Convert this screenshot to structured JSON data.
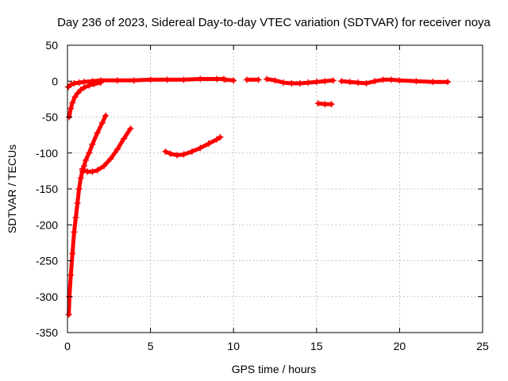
{
  "chart_data": {
    "type": "scatter",
    "title": "Day 236 of 2023, Sidereal Day-to-day VTEC variation (SDTVAR) for receiver noya",
    "xlabel": "GPS time / hours",
    "ylabel": "SDTVAR / TECUs",
    "xlim": [
      0,
      25
    ],
    "ylim": [
      -350,
      50
    ],
    "xticks": [
      0,
      5,
      10,
      15,
      20,
      25
    ],
    "yticks": [
      -350,
      -300,
      -250,
      -200,
      -150,
      -100,
      -50,
      0,
      50
    ],
    "grid": true,
    "marker": "plus",
    "color": "#ff0000",
    "series": [
      {
        "name": "track-main",
        "x": [
          0.05,
          0.2,
          0.4,
          0.7,
          1.0,
          1.5,
          2.0,
          3.0,
          4.0,
          5.0,
          6.0,
          7.0,
          8.0,
          9.0,
          9.4
        ],
        "y": [
          -8,
          -5,
          -3,
          -2,
          -1,
          0,
          1,
          1,
          1,
          2,
          2,
          2,
          3,
          3,
          3
        ]
      },
      {
        "name": "track-main-2",
        "x": [
          9.5,
          10.0
        ],
        "y": [
          2,
          1
        ]
      },
      {
        "name": "track-main-3",
        "x": [
          10.8,
          11.5
        ],
        "y": [
          2,
          2
        ]
      },
      {
        "name": "track-main-4",
        "x": [
          12.0,
          12.5,
          13.0,
          13.5,
          14.0,
          14.5,
          15.0,
          15.5,
          16.0
        ],
        "y": [
          3,
          1,
          -2,
          -3,
          -3,
          -2,
          -1,
          0,
          1
        ]
      },
      {
        "name": "track-main-5",
        "x": [
          16.5,
          17.0,
          17.5,
          18.0,
          18.5,
          19.0,
          19.5,
          20.0,
          21.0,
          22.0,
          22.9
        ],
        "y": [
          0,
          -1,
          -2,
          -3,
          0,
          2,
          2,
          1,
          0,
          -1,
          -1
        ]
      },
      {
        "name": "track-main-6",
        "x": [
          15.1,
          15.5,
          15.9
        ],
        "y": [
          -31,
          -32,
          -32
        ]
      },
      {
        "name": "track-rise-a",
        "x": [
          0.1,
          0.2,
          0.3,
          0.45,
          0.6,
          0.8,
          1.0,
          1.3,
          1.6,
          2.0
        ],
        "y": [
          -50,
          -38,
          -30,
          -22,
          -17,
          -12,
          -9,
          -6,
          -4,
          -2
        ]
      },
      {
        "name": "track-rise-b",
        "x": [
          0.08,
          0.12,
          0.2,
          0.3,
          0.4,
          0.5,
          0.6,
          0.7,
          0.8,
          0.9,
          1.0,
          1.1,
          1.3,
          1.5,
          1.8,
          2.1,
          2.3
        ],
        "y": [
          -325,
          -300,
          -270,
          -240,
          -210,
          -190,
          -170,
          -150,
          -135,
          -125,
          -118,
          -110,
          -100,
          -88,
          -72,
          -58,
          -48
        ]
      },
      {
        "name": "track-rise-c",
        "x": [
          0.9,
          1.0,
          1.2,
          1.5,
          1.8,
          2.2,
          2.6,
          3.0,
          3.4,
          3.8
        ],
        "y": [
          -122,
          -124,
          -126,
          -126,
          -124,
          -118,
          -108,
          -95,
          -80,
          -66
        ]
      },
      {
        "name": "track-mid",
        "x": [
          5.9,
          6.2,
          6.6,
          7.0,
          7.5,
          8.0,
          8.5,
          9.0,
          9.2
        ],
        "y": [
          -98,
          -101,
          -103,
          -102,
          -98,
          -93,
          -87,
          -81,
          -78
        ]
      }
    ]
  }
}
